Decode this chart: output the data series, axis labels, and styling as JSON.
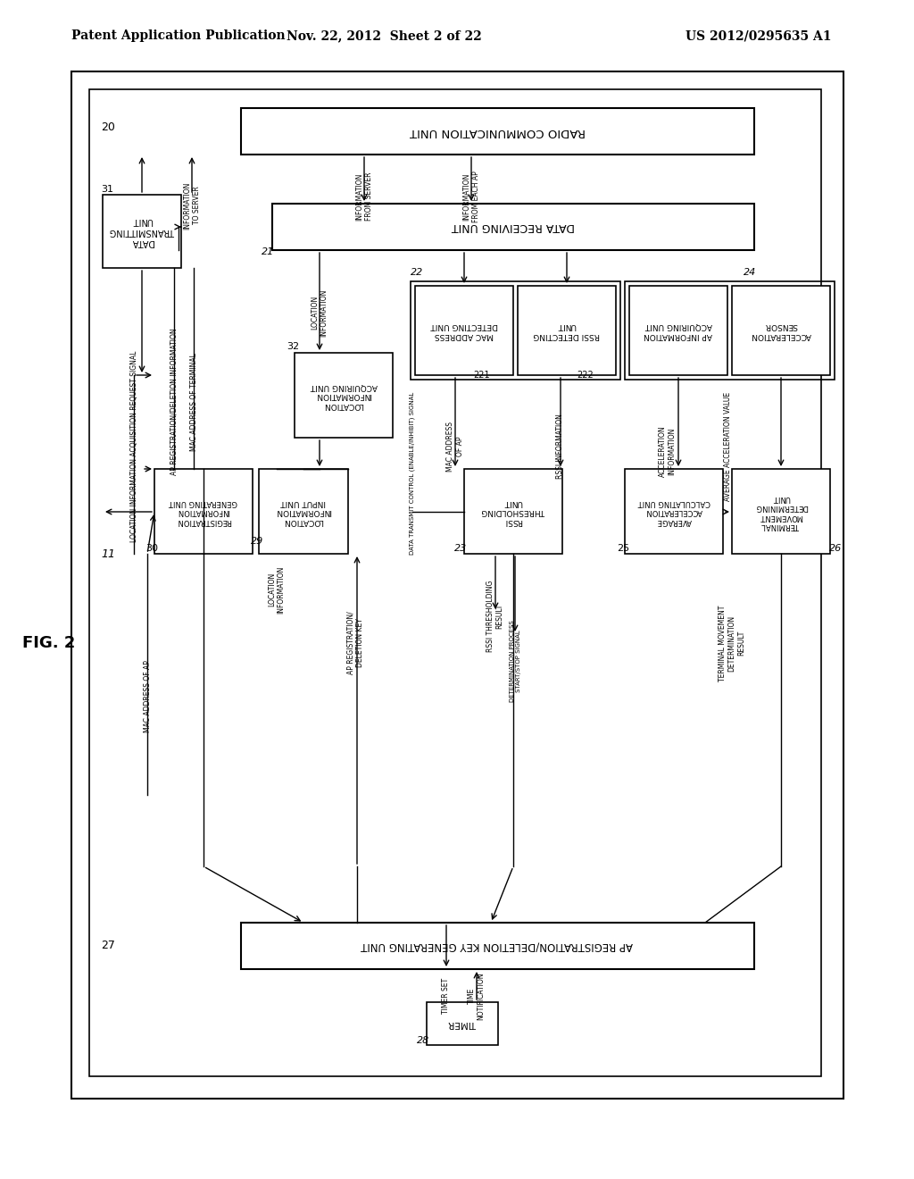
{
  "header_left": "Patent Application Publication",
  "header_mid": "Nov. 22, 2012  Sheet 2 of 22",
  "header_right": "US 2012/0295635 A1",
  "fig_label": "FIG. 2",
  "bg_color": "#ffffff"
}
